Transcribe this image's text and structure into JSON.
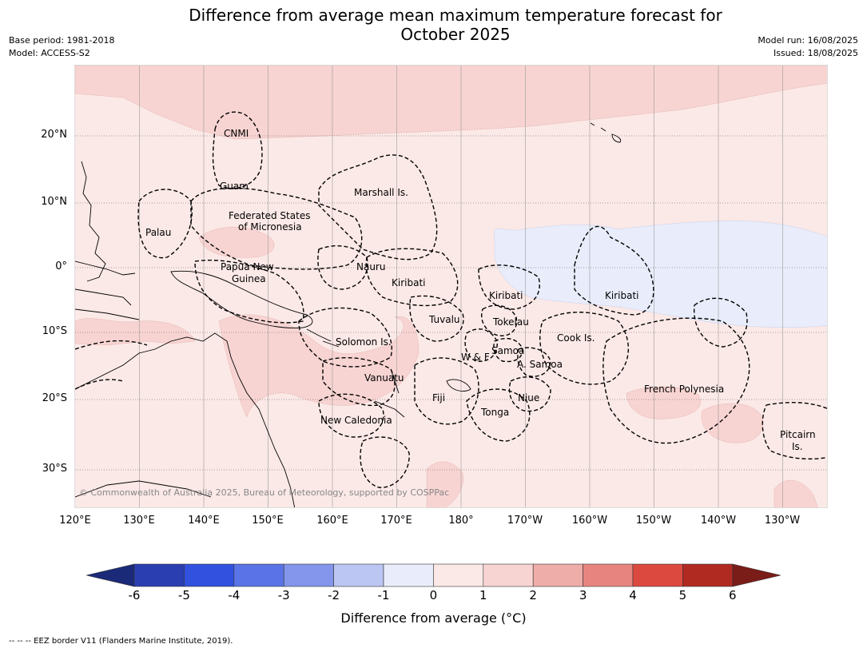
{
  "header": {
    "title_line1": "Difference from average mean maximum temperature forecast for",
    "title_line2": "October 2025",
    "base_period": "Base period: 1981-2018",
    "model": "Model: ACCESS-S2",
    "model_run": "Model run: 16/08/2025",
    "issued": "Issued: 18/08/2025"
  },
  "map": {
    "copyright": "© Commonwealth of Australia 2025, Bureau of Meteorology, supported by COSPPac",
    "lat_labels": [
      "20°N",
      "10°N",
      "0°",
      "10°S",
      "20°S",
      "30°S"
    ],
    "lon_labels": [
      "120°E",
      "130°E",
      "140°E",
      "150°E",
      "160°E",
      "170°E",
      "180°",
      "170°W",
      "160°W",
      "150°W",
      "140°W",
      "130°W"
    ],
    "regions": {
      "cnmi": "CNMI",
      "guam": "Guam",
      "palau": "Palau",
      "fsm_1": "Federated States",
      "fsm_2": "of Micronesia",
      "marshall": "Marshall Is.",
      "nauru": "Nauru",
      "png_1": "Papua New",
      "png_2": "Guinea",
      "kiribati_w": "Kiribati",
      "kiribati_c": "Kiribati",
      "kiribati_e": "Kiribati",
      "tuvalu": "Tuvalu",
      "tokelau": "Tokelau",
      "solomon": "Solomon Is.",
      "wf": "W & F",
      "samoa": "Samoa",
      "asamoa": "A. Samoa",
      "cook": "Cook Is.",
      "vanuatu": "Vanuatu",
      "fiji": "Fiji",
      "niue": "Niue",
      "tonga": "Tonga",
      "newcal": "New Caledonia",
      "frpoly": "French Polynesia",
      "pitcairn_1": "Pitcairn",
      "pitcairn_2": "Is."
    }
  },
  "colorbar": {
    "ticks": [
      "-6",
      "-5",
      "-4",
      "-3",
      "-2",
      "-1",
      "0",
      "1",
      "2",
      "3",
      "4",
      "5",
      "6"
    ],
    "colors": [
      "#2a3eb1",
      "#3151de",
      "#5a73e6",
      "#8396ec",
      "#bcc6f3",
      "#e9edfb",
      "#fbe9e7",
      "#f7d4d2",
      "#efadaa",
      "#e8847f",
      "#dc4a3f",
      "#b02a22"
    ],
    "low_color": "#1b2a78",
    "high_color": "#7a1c18",
    "label": "Difference from average (°C)"
  },
  "footer": "-- -- -- EEZ border V11 (Flanders Marine Institute, 2019)."
}
